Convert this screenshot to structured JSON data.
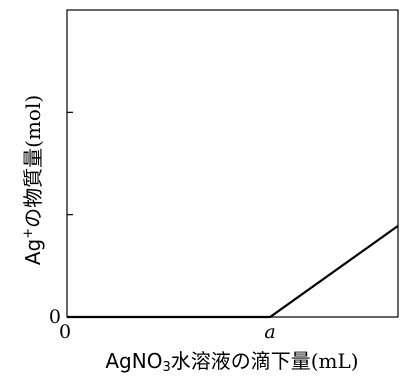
{
  "chart_data": {
    "type": "line",
    "title": "",
    "xlabel": {
      "prefix": "AgNO",
      "subscript": "3",
      "suffix": "水溶液の滴下量(mL)"
    },
    "ylabel": {
      "prefix": "Ag",
      "superscript": "+",
      "suffix": "の物質量(mol)"
    },
    "x_ticks": [
      {
        "value": 0,
        "label": "0"
      },
      {
        "value": 1,
        "label": "a"
      }
    ],
    "y_ticks": [
      {
        "value": 0,
        "label": "0"
      },
      {
        "value": 1,
        "label": ""
      },
      {
        "value": 2,
        "label": ""
      }
    ],
    "xlim": [
      0,
      1.63
    ],
    "ylim": [
      0,
      3
    ],
    "grid": false,
    "series": [
      {
        "x": [
          0,
          1,
          1.63
        ],
        "y": [
          0,
          0,
          0.89
        ]
      }
    ]
  }
}
